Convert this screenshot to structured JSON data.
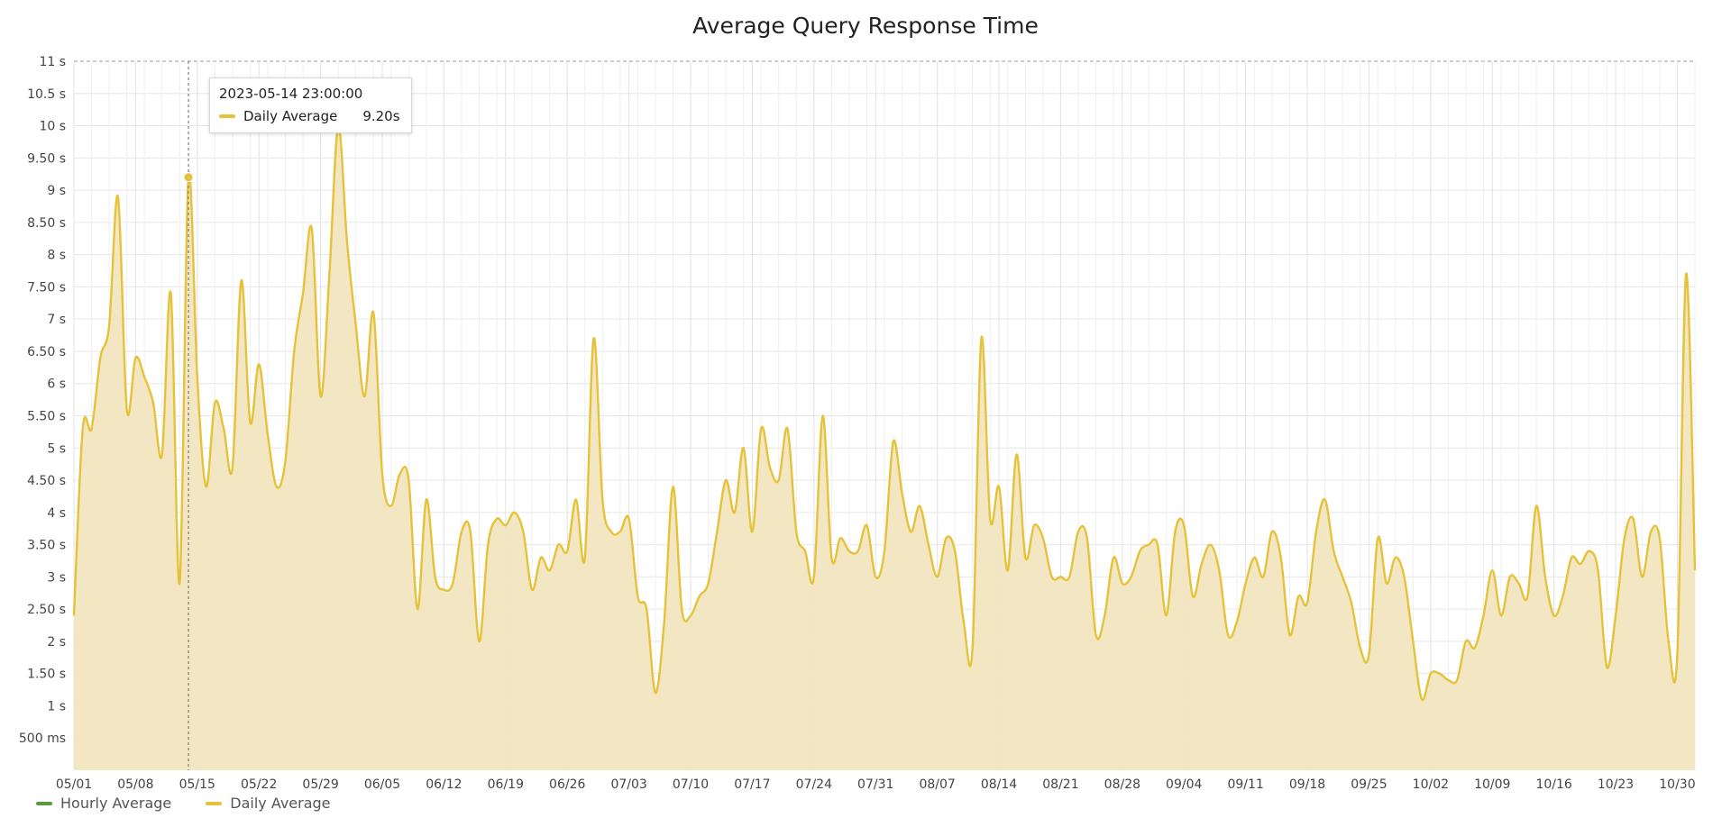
{
  "chart_data": {
    "type": "area",
    "title": "Average Query Response Time",
    "xlabel": "",
    "ylabel": "",
    "ylim": [
      0,
      11
    ],
    "y_ticks": [
      0.5,
      1,
      1.5,
      2,
      2.5,
      3,
      3.5,
      4,
      4.5,
      5,
      5.5,
      6,
      6.5,
      7,
      7.5,
      8,
      8.5,
      9,
      9.5,
      10,
      10.5,
      11
    ],
    "y_tick_labels": [
      "500 ms",
      "1 s",
      "1.50 s",
      "2 s",
      "2.50 s",
      "3 s",
      "3.50 s",
      "4 s",
      "4.50 s",
      "5 s",
      "5.50 s",
      "6 s",
      "6.50 s",
      "7 s",
      "7.50 s",
      "8 s",
      "8.50 s",
      "9 s",
      "9.50 s",
      "10 s",
      "10.5 s",
      "11 s"
    ],
    "x_range": [
      "2023-05-01",
      "2023-11-01"
    ],
    "x_tick_dates": [
      "2023-05-01",
      "2023-05-08",
      "2023-05-15",
      "2023-05-22",
      "2023-05-29",
      "2023-06-05",
      "2023-06-12",
      "2023-06-19",
      "2023-06-26",
      "2023-07-03",
      "2023-07-10",
      "2023-07-17",
      "2023-07-24",
      "2023-07-31",
      "2023-08-07",
      "2023-08-14",
      "2023-08-21",
      "2023-08-28",
      "2023-09-04",
      "2023-09-11",
      "2023-09-18",
      "2023-09-25",
      "2023-10-02",
      "2023-10-09",
      "2023-10-16",
      "2023-10-23",
      "2023-10-30"
    ],
    "x_tick_labels": [
      "05/01",
      "05/08",
      "05/15",
      "05/22",
      "05/29",
      "06/05",
      "06/12",
      "06/19",
      "06/26",
      "07/03",
      "07/10",
      "07/17",
      "07/24",
      "07/31",
      "08/07",
      "08/14",
      "08/21",
      "08/28",
      "09/04",
      "09/11",
      "09/18",
      "09/25",
      "10/02",
      "10/09",
      "10/16",
      "10/23",
      "10/30"
    ],
    "grid": true,
    "legend_position": "bottom-left",
    "series": [
      {
        "name": "Hourly Average",
        "color": "#5b9a3c",
        "points": []
      },
      {
        "name": "Daily Average",
        "color": "#e6c23a",
        "fill": "#f2e6c0",
        "points": [
          [
            "2023-05-01",
            2.4
          ],
          [
            "2023-05-02",
            5.3
          ],
          [
            "2023-05-03",
            5.3
          ],
          [
            "2023-05-04",
            6.4
          ],
          [
            "2023-05-05",
            6.9
          ],
          [
            "2023-05-06",
            8.9
          ],
          [
            "2023-05-07",
            5.6
          ],
          [
            "2023-05-08",
            6.4
          ],
          [
            "2023-05-09",
            6.1
          ],
          [
            "2023-05-10",
            5.7
          ],
          [
            "2023-05-11",
            4.9
          ],
          [
            "2023-05-12",
            7.4
          ],
          [
            "2023-05-13",
            2.9
          ],
          [
            "2023-05-14",
            9.2
          ],
          [
            "2023-05-15",
            6.1
          ],
          [
            "2023-05-16",
            4.4
          ],
          [
            "2023-05-17",
            5.7
          ],
          [
            "2023-05-18",
            5.3
          ],
          [
            "2023-05-19",
            4.7
          ],
          [
            "2023-05-20",
            7.6
          ],
          [
            "2023-05-21",
            5.4
          ],
          [
            "2023-05-22",
            6.3
          ],
          [
            "2023-05-23",
            5.2
          ],
          [
            "2023-05-24",
            4.4
          ],
          [
            "2023-05-25",
            4.8
          ],
          [
            "2023-05-26",
            6.5
          ],
          [
            "2023-05-27",
            7.4
          ],
          [
            "2023-05-28",
            8.4
          ],
          [
            "2023-05-29",
            5.8
          ],
          [
            "2023-05-30",
            7.7
          ],
          [
            "2023-05-31",
            10.0
          ],
          [
            "2023-06-01",
            8.2
          ],
          [
            "2023-06-02",
            6.9
          ],
          [
            "2023-06-03",
            5.8
          ],
          [
            "2023-06-04",
            7.1
          ],
          [
            "2023-06-05",
            4.6
          ],
          [
            "2023-06-06",
            4.1
          ],
          [
            "2023-06-07",
            4.6
          ],
          [
            "2023-06-08",
            4.5
          ],
          [
            "2023-06-09",
            2.5
          ],
          [
            "2023-06-10",
            4.2
          ],
          [
            "2023-06-11",
            3.0
          ],
          [
            "2023-06-12",
            2.8
          ],
          [
            "2023-06-13",
            2.9
          ],
          [
            "2023-06-14",
            3.7
          ],
          [
            "2023-06-15",
            3.7
          ],
          [
            "2023-06-16",
            2.0
          ],
          [
            "2023-06-17",
            3.5
          ],
          [
            "2023-06-18",
            3.9
          ],
          [
            "2023-06-19",
            3.8
          ],
          [
            "2023-06-20",
            4.0
          ],
          [
            "2023-06-21",
            3.7
          ],
          [
            "2023-06-22",
            2.8
          ],
          [
            "2023-06-23",
            3.3
          ],
          [
            "2023-06-24",
            3.1
          ],
          [
            "2023-06-25",
            3.5
          ],
          [
            "2023-06-26",
            3.4
          ],
          [
            "2023-06-27",
            4.2
          ],
          [
            "2023-06-28",
            3.3
          ],
          [
            "2023-06-29",
            6.7
          ],
          [
            "2023-06-30",
            4.2
          ],
          [
            "2023-07-01",
            3.7
          ],
          [
            "2023-07-02",
            3.7
          ],
          [
            "2023-07-03",
            3.9
          ],
          [
            "2023-07-04",
            2.7
          ],
          [
            "2023-07-05",
            2.5
          ],
          [
            "2023-07-06",
            1.2
          ],
          [
            "2023-07-07",
            2.3
          ],
          [
            "2023-07-08",
            4.4
          ],
          [
            "2023-07-09",
            2.5
          ],
          [
            "2023-07-10",
            2.4
          ],
          [
            "2023-07-11",
            2.7
          ],
          [
            "2023-07-12",
            2.9
          ],
          [
            "2023-07-13",
            3.7
          ],
          [
            "2023-07-14",
            4.5
          ],
          [
            "2023-07-15",
            4.0
          ],
          [
            "2023-07-16",
            5.0
          ],
          [
            "2023-07-17",
            3.7
          ],
          [
            "2023-07-18",
            5.3
          ],
          [
            "2023-07-19",
            4.7
          ],
          [
            "2023-07-20",
            4.5
          ],
          [
            "2023-07-21",
            5.3
          ],
          [
            "2023-07-22",
            3.7
          ],
          [
            "2023-07-23",
            3.4
          ],
          [
            "2023-07-24",
            3.0
          ],
          [
            "2023-07-25",
            5.5
          ],
          [
            "2023-07-26",
            3.3
          ],
          [
            "2023-07-27",
            3.6
          ],
          [
            "2023-07-28",
            3.4
          ],
          [
            "2023-07-29",
            3.4
          ],
          [
            "2023-07-30",
            3.8
          ],
          [
            "2023-07-31",
            3.0
          ],
          [
            "2023-08-01",
            3.4
          ],
          [
            "2023-08-02",
            5.1
          ],
          [
            "2023-08-03",
            4.3
          ],
          [
            "2023-08-04",
            3.7
          ],
          [
            "2023-08-05",
            4.1
          ],
          [
            "2023-08-06",
            3.5
          ],
          [
            "2023-08-07",
            3.0
          ],
          [
            "2023-08-08",
            3.6
          ],
          [
            "2023-08-09",
            3.4
          ],
          [
            "2023-08-10",
            2.3
          ],
          [
            "2023-08-11",
            1.9
          ],
          [
            "2023-08-12",
            6.7
          ],
          [
            "2023-08-13",
            3.9
          ],
          [
            "2023-08-14",
            4.4
          ],
          [
            "2023-08-15",
            3.1
          ],
          [
            "2023-08-16",
            4.9
          ],
          [
            "2023-08-17",
            3.3
          ],
          [
            "2023-08-18",
            3.8
          ],
          [
            "2023-08-19",
            3.6
          ],
          [
            "2023-08-20",
            3.0
          ],
          [
            "2023-08-21",
            3.0
          ],
          [
            "2023-08-22",
            3.0
          ],
          [
            "2023-08-23",
            3.7
          ],
          [
            "2023-08-24",
            3.6
          ],
          [
            "2023-08-25",
            2.1
          ],
          [
            "2023-08-26",
            2.4
          ],
          [
            "2023-08-27",
            3.3
          ],
          [
            "2023-08-28",
            2.9
          ],
          [
            "2023-08-29",
            3.0
          ],
          [
            "2023-08-30",
            3.4
          ],
          [
            "2023-08-31",
            3.5
          ],
          [
            "2023-09-01",
            3.5
          ],
          [
            "2023-09-02",
            2.4
          ],
          [
            "2023-09-03",
            3.7
          ],
          [
            "2023-09-04",
            3.8
          ],
          [
            "2023-09-05",
            2.7
          ],
          [
            "2023-09-06",
            3.2
          ],
          [
            "2023-09-07",
            3.5
          ],
          [
            "2023-09-08",
            3.1
          ],
          [
            "2023-09-09",
            2.1
          ],
          [
            "2023-09-10",
            2.3
          ],
          [
            "2023-09-11",
            2.9
          ],
          [
            "2023-09-12",
            3.3
          ],
          [
            "2023-09-13",
            3.0
          ],
          [
            "2023-09-14",
            3.7
          ],
          [
            "2023-09-15",
            3.3
          ],
          [
            "2023-09-16",
            2.1
          ],
          [
            "2023-09-17",
            2.7
          ],
          [
            "2023-09-18",
            2.6
          ],
          [
            "2023-09-19",
            3.7
          ],
          [
            "2023-09-20",
            4.2
          ],
          [
            "2023-09-21",
            3.4
          ],
          [
            "2023-09-22",
            3.0
          ],
          [
            "2023-09-23",
            2.6
          ],
          [
            "2023-09-24",
            1.9
          ],
          [
            "2023-09-25",
            1.8
          ],
          [
            "2023-09-26",
            3.6
          ],
          [
            "2023-09-27",
            2.9
          ],
          [
            "2023-09-28",
            3.3
          ],
          [
            "2023-09-29",
            3.0
          ],
          [
            "2023-09-30",
            2.0
          ],
          [
            "2023-10-01",
            1.1
          ],
          [
            "2023-10-02",
            1.5
          ],
          [
            "2023-10-03",
            1.5
          ],
          [
            "2023-10-04",
            1.4
          ],
          [
            "2023-10-05",
            1.4
          ],
          [
            "2023-10-06",
            2.0
          ],
          [
            "2023-10-07",
            1.9
          ],
          [
            "2023-10-08",
            2.4
          ],
          [
            "2023-10-09",
            3.1
          ],
          [
            "2023-10-10",
            2.4
          ],
          [
            "2023-10-11",
            3.0
          ],
          [
            "2023-10-12",
            2.9
          ],
          [
            "2023-10-13",
            2.7
          ],
          [
            "2023-10-14",
            4.1
          ],
          [
            "2023-10-15",
            3.0
          ],
          [
            "2023-10-16",
            2.4
          ],
          [
            "2023-10-17",
            2.7
          ],
          [
            "2023-10-18",
            3.3
          ],
          [
            "2023-10-19",
            3.2
          ],
          [
            "2023-10-20",
            3.4
          ],
          [
            "2023-10-21",
            3.1
          ],
          [
            "2023-10-22",
            1.6
          ],
          [
            "2023-10-23",
            2.4
          ],
          [
            "2023-10-24",
            3.6
          ],
          [
            "2023-10-25",
            3.9
          ],
          [
            "2023-10-26",
            3.0
          ],
          [
            "2023-10-27",
            3.7
          ],
          [
            "2023-10-28",
            3.6
          ],
          [
            "2023-10-29",
            2.0
          ],
          [
            "2023-10-30",
            1.8
          ],
          [
            "2023-10-31",
            7.7
          ],
          [
            "2023-11-01",
            3.1
          ]
        ]
      }
    ],
    "tooltip": {
      "time": "2023-05-14 23:00:00",
      "series": "Daily Average",
      "value": "9.20s",
      "x": "2023-05-14",
      "y": 9.2
    }
  }
}
